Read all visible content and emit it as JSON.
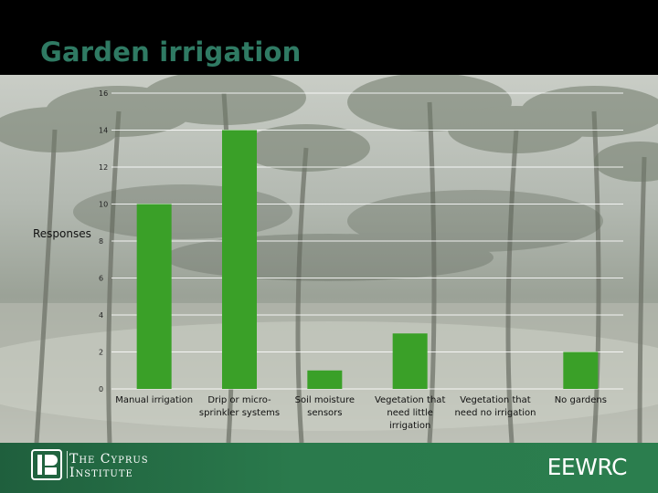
{
  "slide": {
    "title": "Garden irrigation",
    "footer_brand": "EEWRC",
    "institution_line1": "The Cyprus",
    "institution_line2": "Institute"
  },
  "chart_data": {
    "type": "bar",
    "title": "",
    "xlabel": "",
    "ylabel": "Responses",
    "ylim": [
      0,
      16
    ],
    "yticks": [
      0,
      2,
      4,
      6,
      8,
      10,
      12,
      14,
      16
    ],
    "grid": true,
    "bar_color": "#3aa028",
    "categories": [
      [
        "Manual irrigation"
      ],
      [
        "Drip or micro-",
        "sprinkler systems"
      ],
      [
        "Soil moisture",
        "sensors"
      ],
      [
        "Vegetation that",
        "need little",
        "irrigation"
      ],
      [
        "Vegetation that",
        "need no irrigation"
      ],
      [
        "No gardens"
      ]
    ],
    "values": [
      10,
      14,
      1,
      3,
      0,
      2
    ]
  }
}
